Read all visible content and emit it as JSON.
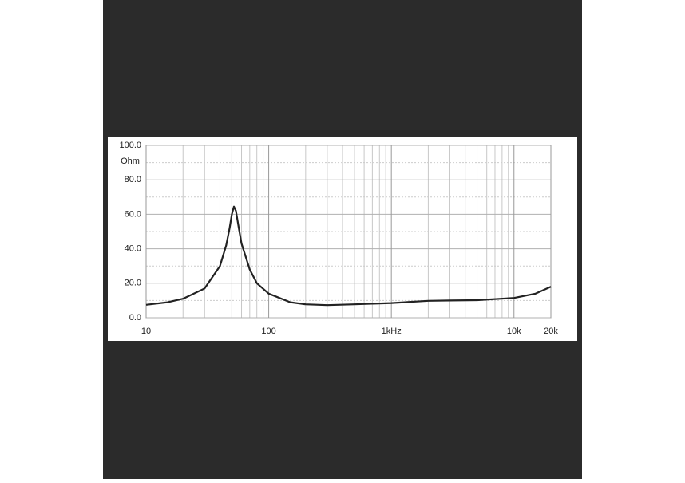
{
  "chart_data": {
    "type": "line",
    "ylabel": "Ohm",
    "x": [
      10,
      15,
      20,
      30,
      40,
      45,
      48,
      50,
      52,
      54,
      57,
      60,
      70,
      80,
      100,
      150,
      200,
      300,
      500,
      1000,
      2000,
      3000,
      5000,
      10000,
      15000,
      20000
    ],
    "series": [
      {
        "color": "#222222",
        "values": [
          7.5,
          9,
          11,
          17,
          30,
          42,
          52,
          60,
          64.5,
          62,
          52,
          43,
          28,
          20,
          14,
          9,
          7.8,
          7.3,
          7.8,
          8.5,
          9.8,
          10,
          10.2,
          11.5,
          14,
          18
        ]
      }
    ],
    "xlim": [
      10,
      20000
    ],
    "log_x": true,
    "xticks": [
      10,
      100,
      {
        "value": 1000,
        "label": "1kHz"
      },
      {
        "value": 10000,
        "label": "10k"
      },
      {
        "value": 20000,
        "label": "20k"
      }
    ],
    "xminor": [
      20,
      30,
      40,
      50,
      60,
      70,
      80,
      90,
      200,
      300,
      400,
      500,
      600,
      700,
      800,
      900,
      2000,
      3000,
      4000,
      5000,
      6000,
      7000,
      8000,
      9000
    ],
    "ylim": [
      0,
      100
    ],
    "yticks": [
      {
        "value": 0,
        "label": "0.0"
      },
      {
        "value": 20,
        "label": "20.0"
      },
      {
        "value": 40,
        "label": "40.0"
      },
      {
        "value": 60,
        "label": "60.0"
      },
      {
        "value": 80,
        "label": "80.0"
      },
      {
        "value": 100,
        "label": "100.0"
      }
    ],
    "yminor": [
      10,
      30,
      50,
      70,
      90
    ],
    "grid": true
  }
}
